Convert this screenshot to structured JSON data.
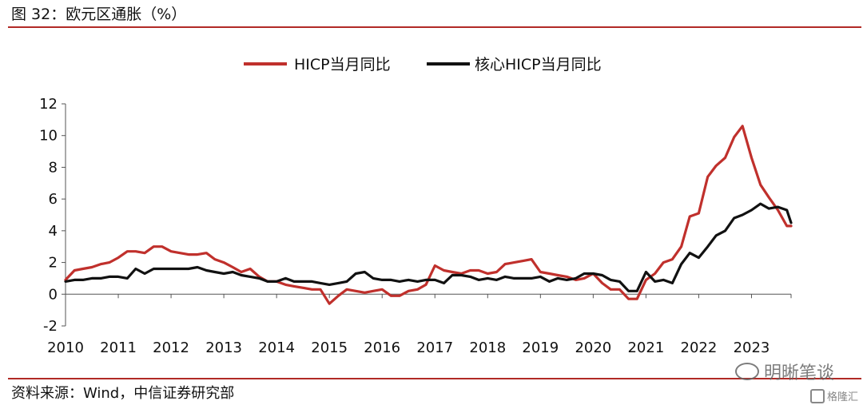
{
  "header": {
    "title": "图 32：欧元区通胀（%）"
  },
  "footer": {
    "source": "资料来源：Wind，中信证券研究部"
  },
  "watermark": {
    "main": "明晰笔谈",
    "corner": "格隆汇"
  },
  "colors": {
    "rule": "#b12a26",
    "hicp": "#c0302c",
    "core": "#111111",
    "axis": "#555555"
  },
  "chart_data": {
    "type": "line",
    "title": "",
    "xlabel": "",
    "ylabel": "",
    "ylim": [
      -2,
      12
    ],
    "yticks": [
      -2,
      0,
      2,
      4,
      6,
      8,
      10,
      12
    ],
    "ytick_labels": [
      "-2",
      "0",
      "2",
      "4",
      "6",
      "8",
      "10",
      "12"
    ],
    "xlim": [
      2010.0,
      2023.75
    ],
    "xticks": [
      "2010",
      "2011",
      "2012",
      "2013",
      "2014",
      "2015",
      "2016",
      "2017",
      "2018",
      "2019",
      "2020",
      "2021",
      "2022",
      "2023"
    ],
    "grid": false,
    "legend": "top-center",
    "series": [
      {
        "name": "HICP当月同比",
        "color": "#c0302c",
        "x": [
          2010.0,
          2010.17,
          2010.33,
          2010.5,
          2010.67,
          2010.83,
          2011.0,
          2011.17,
          2011.33,
          2011.5,
          2011.67,
          2011.83,
          2012.0,
          2012.17,
          2012.33,
          2012.5,
          2012.67,
          2012.83,
          2013.0,
          2013.17,
          2013.33,
          2013.5,
          2013.67,
          2013.83,
          2014.0,
          2014.17,
          2014.33,
          2014.5,
          2014.67,
          2014.83,
          2015.0,
          2015.17,
          2015.33,
          2015.5,
          2015.67,
          2015.83,
          2016.0,
          2016.17,
          2016.33,
          2016.5,
          2016.67,
          2016.83,
          2017.0,
          2017.17,
          2017.33,
          2017.5,
          2017.67,
          2017.83,
          2018.0,
          2018.17,
          2018.33,
          2018.5,
          2018.67,
          2018.83,
          2019.0,
          2019.17,
          2019.33,
          2019.5,
          2019.67,
          2019.83,
          2020.0,
          2020.17,
          2020.33,
          2020.5,
          2020.67,
          2020.83,
          2021.0,
          2021.17,
          2021.33,
          2021.5,
          2021.67,
          2021.83,
          2022.0,
          2022.17,
          2022.33,
          2022.5,
          2022.67,
          2022.83,
          2023.0,
          2023.17,
          2023.33,
          2023.5,
          2023.67,
          2023.75
        ],
        "values": [
          0.9,
          1.5,
          1.6,
          1.7,
          1.9,
          2.0,
          2.3,
          2.7,
          2.7,
          2.6,
          3.0,
          3.0,
          2.7,
          2.6,
          2.5,
          2.5,
          2.6,
          2.2,
          2.0,
          1.7,
          1.4,
          1.6,
          1.1,
          0.8,
          0.8,
          0.6,
          0.5,
          0.4,
          0.3,
          0.3,
          -0.6,
          -0.1,
          0.3,
          0.2,
          0.1,
          0.2,
          0.3,
          -0.1,
          -0.1,
          0.2,
          0.3,
          0.6,
          1.8,
          1.5,
          1.4,
          1.3,
          1.5,
          1.5,
          1.3,
          1.4,
          1.9,
          2.0,
          2.1,
          2.2,
          1.4,
          1.3,
          1.2,
          1.1,
          0.9,
          1.0,
          1.3,
          0.7,
          0.3,
          0.3,
          -0.3,
          -0.3,
          0.9,
          1.3,
          2.0,
          2.2,
          3.0,
          4.9,
          5.1,
          7.4,
          8.1,
          8.6,
          9.9,
          10.6,
          8.6,
          6.9,
          6.1,
          5.3,
          4.3,
          4.3
        ]
      },
      {
        "name": "核心HICP当月同比",
        "color": "#111111",
        "x": [
          2010.0,
          2010.17,
          2010.33,
          2010.5,
          2010.67,
          2010.83,
          2011.0,
          2011.17,
          2011.33,
          2011.5,
          2011.67,
          2011.83,
          2012.0,
          2012.17,
          2012.33,
          2012.5,
          2012.67,
          2012.83,
          2013.0,
          2013.17,
          2013.33,
          2013.5,
          2013.67,
          2013.83,
          2014.0,
          2014.17,
          2014.33,
          2014.5,
          2014.67,
          2014.83,
          2015.0,
          2015.17,
          2015.33,
          2015.5,
          2015.67,
          2015.83,
          2016.0,
          2016.17,
          2016.33,
          2016.5,
          2016.67,
          2016.83,
          2017.0,
          2017.17,
          2017.33,
          2017.5,
          2017.67,
          2017.83,
          2018.0,
          2018.17,
          2018.33,
          2018.5,
          2018.67,
          2018.83,
          2019.0,
          2019.17,
          2019.33,
          2019.5,
          2019.67,
          2019.83,
          2020.0,
          2020.17,
          2020.33,
          2020.5,
          2020.67,
          2020.83,
          2021.0,
          2021.17,
          2021.33,
          2021.5,
          2021.67,
          2021.83,
          2022.0,
          2022.17,
          2022.33,
          2022.5,
          2022.67,
          2022.83,
          2023.0,
          2023.17,
          2023.33,
          2023.5,
          2023.67,
          2023.75
        ],
        "values": [
          0.8,
          0.9,
          0.9,
          1.0,
          1.0,
          1.1,
          1.1,
          1.0,
          1.6,
          1.3,
          1.6,
          1.6,
          1.6,
          1.6,
          1.6,
          1.7,
          1.5,
          1.4,
          1.3,
          1.4,
          1.2,
          1.1,
          1.0,
          0.8,
          0.8,
          1.0,
          0.8,
          0.8,
          0.8,
          0.7,
          0.6,
          0.7,
          0.8,
          1.3,
          1.4,
          1.0,
          0.9,
          0.9,
          0.8,
          0.9,
          0.8,
          0.9,
          0.9,
          0.7,
          1.2,
          1.2,
          1.1,
          0.9,
          1.0,
          0.9,
          1.1,
          1.0,
          1.0,
          1.0,
          1.1,
          0.8,
          1.0,
          0.9,
          1.0,
          1.3,
          1.3,
          1.2,
          0.9,
          0.8,
          0.2,
          0.2,
          1.4,
          0.8,
          0.9,
          0.7,
          1.9,
          2.6,
          2.3,
          3.0,
          3.7,
          4.0,
          4.8,
          5.0,
          5.3,
          5.7,
          5.4,
          5.5,
          5.3,
          4.5
        ]
      }
    ]
  }
}
